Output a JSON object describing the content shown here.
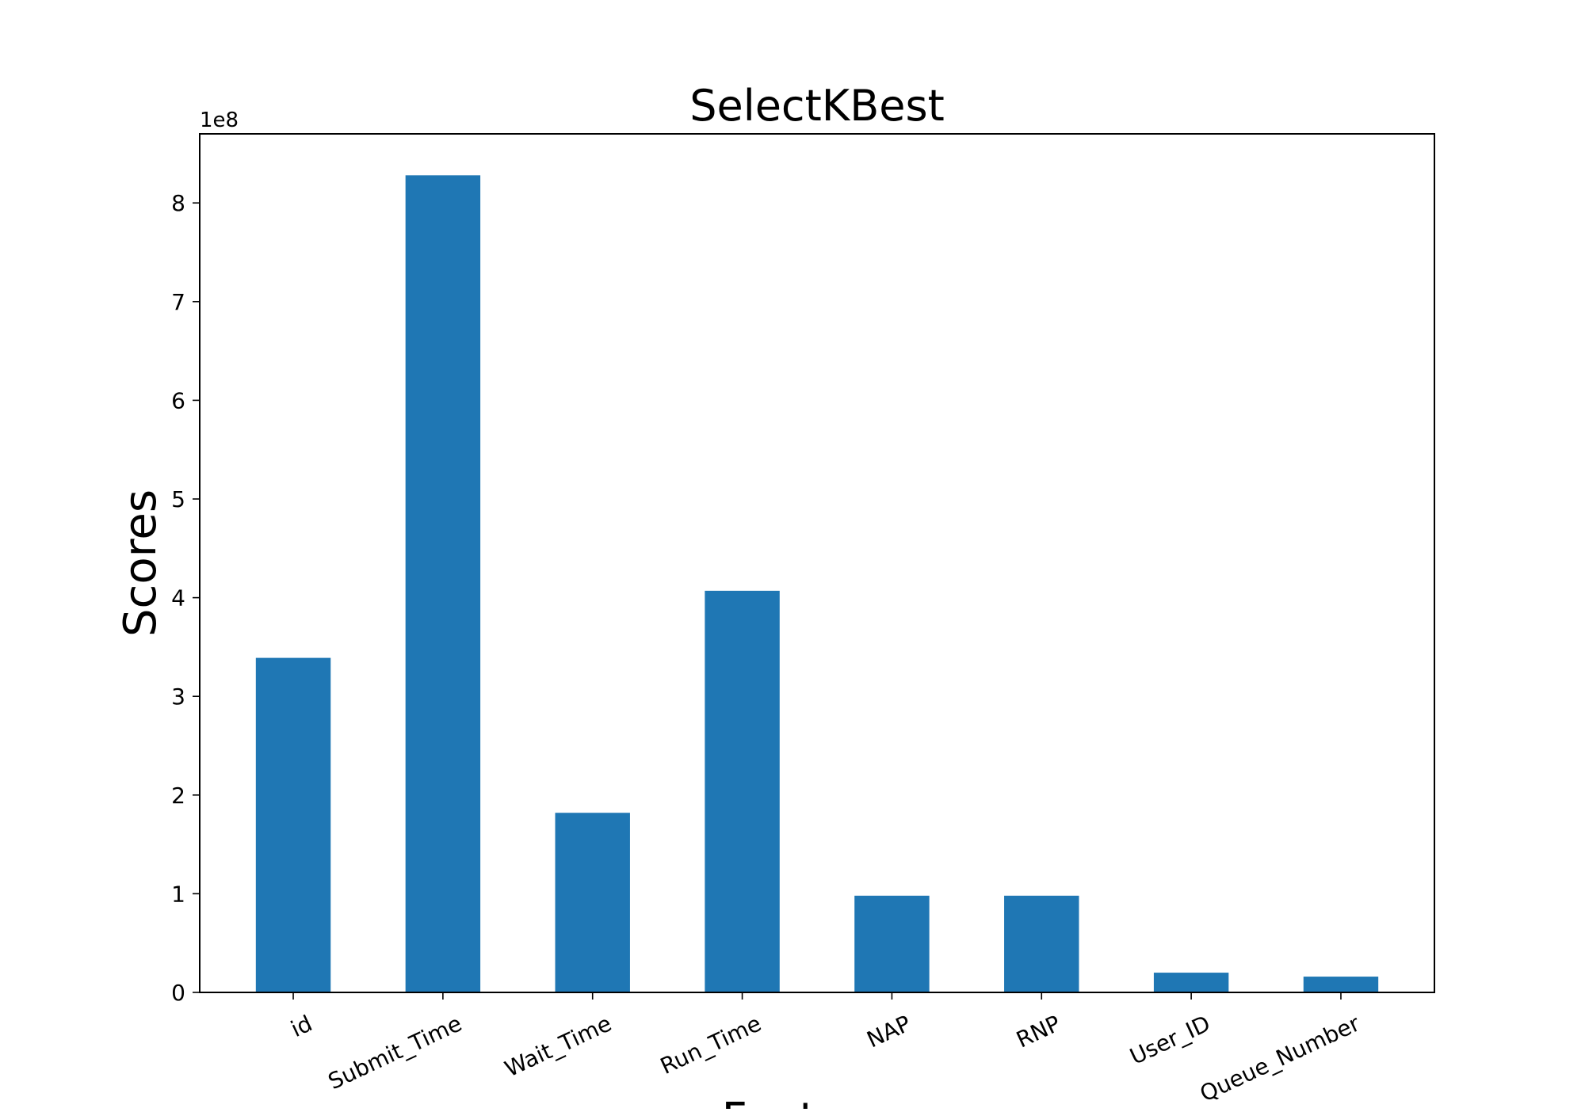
{
  "colors": {
    "bar": "#1f77b4",
    "axis": "#000000",
    "background": "#ffffff"
  },
  "chart_data": {
    "type": "bar",
    "title": "SelectKBest",
    "ylabel": "Scores",
    "xlabel": "Features",
    "y_multiplier_label": "1e8",
    "categories": [
      "id",
      "Submit_Time",
      "Wait_Time",
      "Run_Time",
      "NAP",
      "RNP",
      "User_ID",
      "Queue_Number"
    ],
    "values": [
      3.39,
      8.28,
      1.82,
      4.07,
      0.98,
      0.98,
      0.2,
      0.16
    ],
    "value_scale": 100000000,
    "ylim": [
      0,
      8.7
    ],
    "yticks": [
      0,
      1,
      2,
      3,
      4,
      5,
      6,
      7,
      8
    ],
    "grid": false,
    "legend": false
  }
}
